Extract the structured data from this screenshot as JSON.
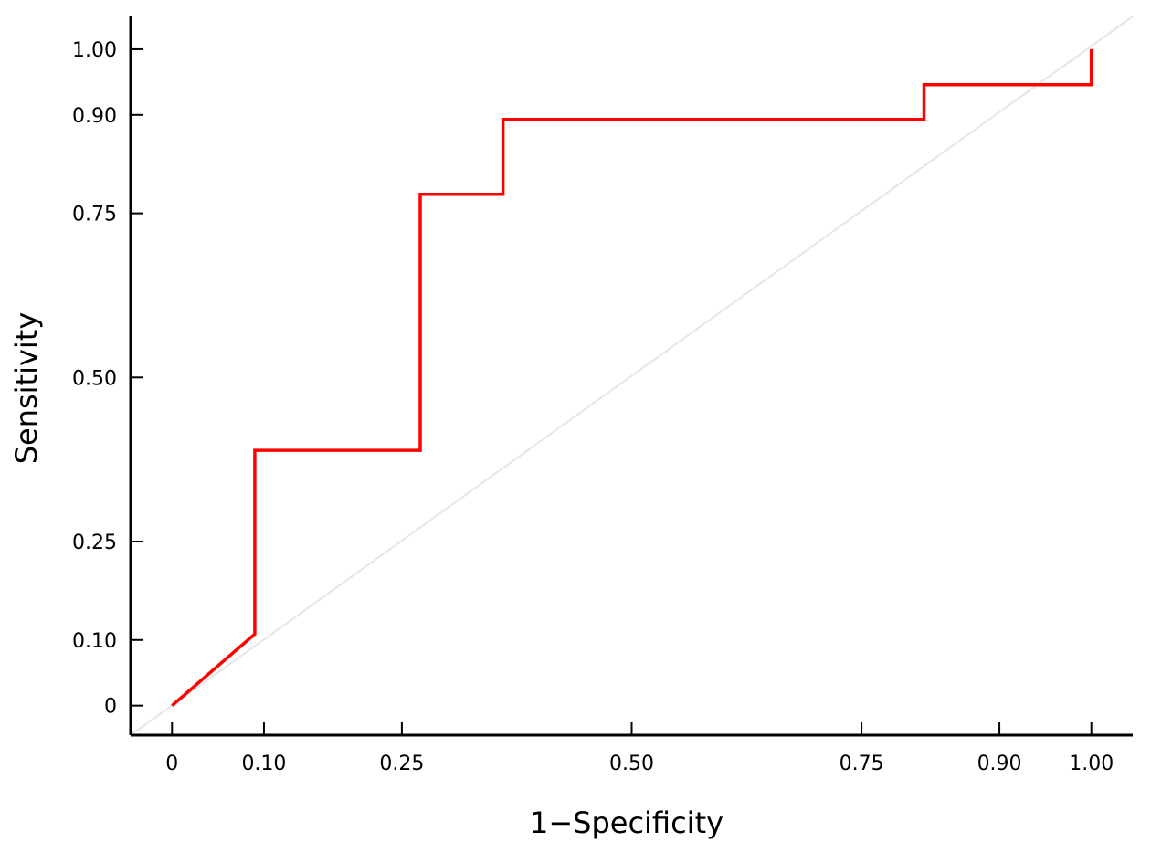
{
  "chart_data": {
    "type": "line",
    "title": "",
    "xlabel": "1−Specificity",
    "ylabel": "Sensitivity",
    "xlim": [
      -0.045,
      1.045
    ],
    "ylim": [
      -0.045,
      1.05
    ],
    "x_ticks": [
      {
        "value": 0,
        "label": "0"
      },
      {
        "value": 0.1,
        "label": "0.10"
      },
      {
        "value": 0.25,
        "label": "0.25"
      },
      {
        "value": 0.5,
        "label": "0.50"
      },
      {
        "value": 0.75,
        "label": "0.75"
      },
      {
        "value": 0.9,
        "label": "0.90"
      },
      {
        "value": 1,
        "label": "1.00"
      }
    ],
    "y_ticks": [
      {
        "value": 0,
        "label": "0"
      },
      {
        "value": 0.1,
        "label": "0.10"
      },
      {
        "value": 0.25,
        "label": "0.25"
      },
      {
        "value": 0.5,
        "label": "0.50"
      },
      {
        "value": 0.75,
        "label": "0.75"
      },
      {
        "value": 0.9,
        "label": "0.90"
      },
      {
        "value": 1,
        "label": "1.00"
      }
    ],
    "grid": false,
    "legend": "none",
    "reference_line": {
      "x": [
        -0.045,
        1.045
      ],
      "y": [
        -0.045,
        1.05
      ],
      "color": "#e6e6e6"
    },
    "series": [
      {
        "color": "#ff0000",
        "x": [
          0,
          0.09,
          0.09,
          0.27,
          0.27,
          0.36,
          0.36,
          0.818,
          0.818,
          1.0,
          1.0
        ],
        "y": [
          0,
          0.109,
          0.389,
          0.389,
          0.779,
          0.779,
          0.893,
          0.893,
          0.946,
          0.946,
          1.0
        ]
      }
    ]
  }
}
